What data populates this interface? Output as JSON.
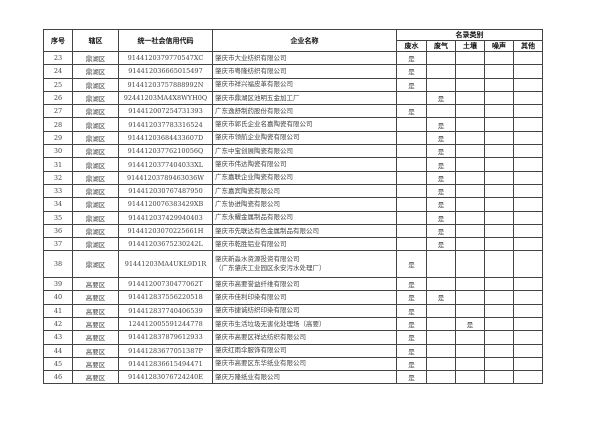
{
  "headers": {
    "seq": "序号",
    "district": "辖区",
    "code": "统一社会信用代码",
    "name": "企业名称",
    "category": "名录类别",
    "sub": [
      "废水",
      "废气",
      "土壤",
      "噪声",
      "其他"
    ]
  },
  "mark": "是",
  "rows": [
    {
      "seq": "23",
      "district": "鼎湖区",
      "code": "9144120379770547XC",
      "name": "肇庆市大业纺织有限公司",
      "flags": [
        1,
        0,
        0,
        0,
        0
      ]
    },
    {
      "seq": "24",
      "district": "鼎湖区",
      "code": "914412036665015497",
      "name": "肇庆市粤隆纺织有限公司",
      "flags": [
        1,
        0,
        0,
        0,
        0
      ]
    },
    {
      "seq": "25",
      "district": "鼎湖区",
      "code": "91441203757888992N",
      "name": "肇庆市祥兴福皮革有限公司",
      "flags": [
        1,
        0,
        0,
        0,
        0
      ]
    },
    {
      "seq": "26",
      "district": "鼎湖区",
      "code": "92441203MA4X8WYH0Q",
      "name": "肇庆市鼎湖区池明五金加工厂",
      "flags": [
        0,
        1,
        0,
        0,
        0
      ]
    },
    {
      "seq": "27",
      "district": "鼎湖区",
      "code": "914412007254731393",
      "name": "广东逸舒制药股份有限公司",
      "flags": [
        1,
        0,
        0,
        0,
        0
      ]
    },
    {
      "seq": "28",
      "district": "鼎湖区",
      "code": "914412037783316524",
      "name": "肇庆市郭氏企业名嘉陶瓷有限公司",
      "flags": [
        0,
        1,
        0,
        0,
        0
      ]
    },
    {
      "seq": "29",
      "district": "鼎湖区",
      "code": "91441203684433607D",
      "name": "肇庆市领航企业陶瓷有限公司",
      "flags": [
        0,
        1,
        0,
        0,
        0
      ]
    },
    {
      "seq": "30",
      "district": "鼎湖区",
      "code": "91441203776210056Q",
      "name": "广东中宝创展陶瓷有限公司",
      "flags": [
        0,
        1,
        0,
        0,
        0
      ]
    },
    {
      "seq": "31",
      "district": "鼎湖区",
      "code": "9144120377404033XL",
      "name": "肇庆市伟达陶瓷有限公司",
      "flags": [
        0,
        1,
        0,
        0,
        0
      ]
    },
    {
      "seq": "32",
      "district": "鼎湖区",
      "code": "91441203789463036W",
      "name": "广东嘉联企业陶瓷有限公司",
      "flags": [
        0,
        1,
        0,
        0,
        0
      ]
    },
    {
      "seq": "33",
      "district": "鼎湖区",
      "code": "914412030767487950",
      "name": "广东嘉宾陶瓷有限公司",
      "flags": [
        0,
        1,
        0,
        0,
        0
      ]
    },
    {
      "seq": "34",
      "district": "鼎湖区",
      "code": "9144120076383429XB",
      "name": "广东协进陶瓷有限公司",
      "flags": [
        0,
        1,
        0,
        0,
        0
      ]
    },
    {
      "seq": "35",
      "district": "鼎湖区",
      "code": "914412037429940403",
      "name": "广东永耀金属制品有限公司",
      "flags": [
        0,
        1,
        0,
        0,
        0
      ]
    },
    {
      "seq": "36",
      "district": "鼎湖区",
      "code": "91441203070225661H",
      "name": "肇庆市先联达有色金属制品有限公司",
      "flags": [
        0,
        1,
        0,
        0,
        0
      ]
    },
    {
      "seq": "37",
      "district": "鼎湖区",
      "code": "91441203675230242L",
      "name": "肇庆市乾胜铝业有限公司",
      "flags": [
        0,
        1,
        0,
        0,
        0
      ]
    },
    {
      "seq": "38",
      "district": "鼎湖区",
      "code": "91441203MA4UKL9D1R",
      "name": "肇庆新淼水资源投资有限公司",
      "name2": "（广东肇庆工业园区永安污水处理厂）",
      "flags": [
        1,
        0,
        0,
        0,
        0
      ]
    },
    {
      "seq": "39",
      "district": "高要区",
      "code": "91441200730477062T",
      "name": "肇庆市高要誉益纤维有限公司",
      "flags": [
        1,
        0,
        0,
        0,
        0
      ]
    },
    {
      "seq": "40",
      "district": "高要区",
      "code": "914412837556220518",
      "name": "肇庆市佳利印染有限公司",
      "flags": [
        1,
        1,
        0,
        0,
        0
      ]
    },
    {
      "seq": "41",
      "district": "高要区",
      "code": "914412837740406539",
      "name": "肇庆市捷诚纺织印染有限公司",
      "flags": [
        1,
        0,
        0,
        0,
        0
      ]
    },
    {
      "seq": "42",
      "district": "高要区",
      "code": "124412005591244778",
      "name": "肇庆市生活垃圾无害化处理场（高要）",
      "flags": [
        1,
        0,
        1,
        0,
        0
      ]
    },
    {
      "seq": "43",
      "district": "高要区",
      "code": "914412837879612933",
      "name": "肇庆市高要区祥达纺织有限公司",
      "flags": [
        1,
        0,
        0,
        0,
        0
      ]
    },
    {
      "seq": "44",
      "district": "高要区",
      "code": "91441283677051387P",
      "name": "肇庆红雨伞服饰有限公司",
      "flags": [
        1,
        0,
        0,
        0,
        0
      ]
    },
    {
      "seq": "45",
      "district": "高要区",
      "code": "914412836615494471",
      "name": "肇庆市高要区东华纸业有限公司",
      "flags": [
        1,
        0,
        0,
        0,
        0
      ]
    },
    {
      "seq": "46",
      "district": "高要区",
      "code": "91441283076724240E",
      "name": "肇庆万隆纸业有限公司",
      "flags": [
        1,
        0,
        0,
        0,
        0
      ]
    }
  ]
}
